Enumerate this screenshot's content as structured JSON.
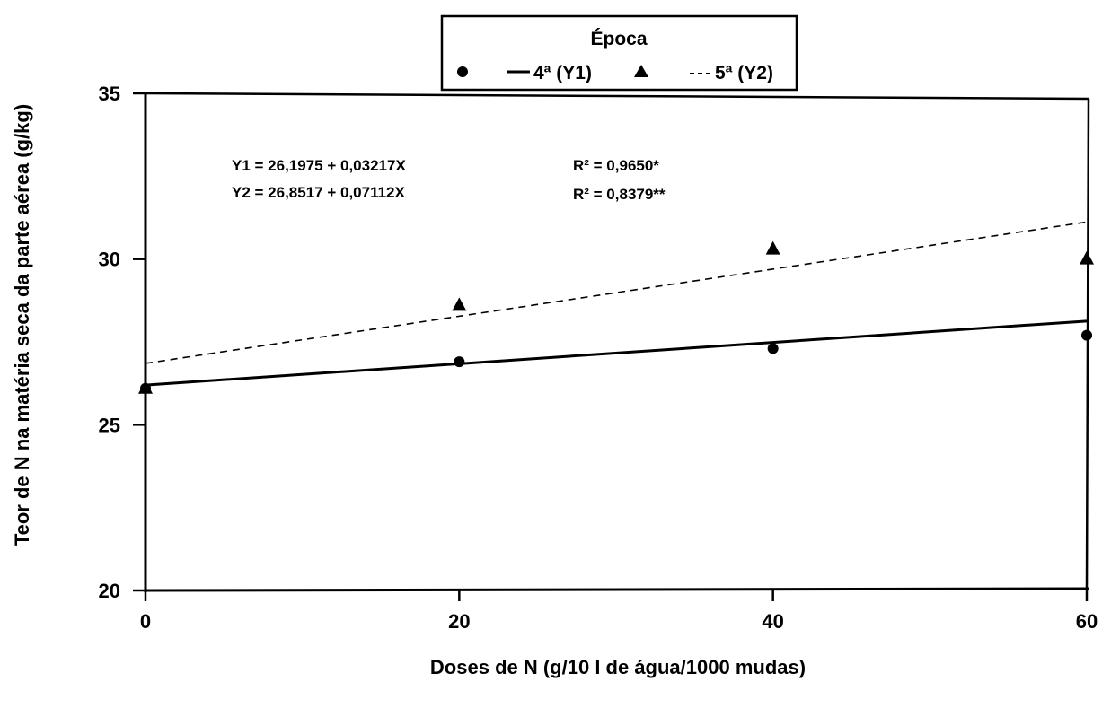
{
  "chart_data": {
    "type": "scatter",
    "xlabel": "Doses de N (g/10 l de água/1000 mudas)",
    "ylabel": "Teor de N na matéria seca da parte aérea (g/kg)",
    "xlim": [
      0,
      60
    ],
    "ylim": [
      20,
      35
    ],
    "x_ticks": [
      "0",
      "20",
      "40",
      "60"
    ],
    "y_ticks": [
      "20",
      "25",
      "30",
      "35"
    ],
    "grid": false,
    "legend": {
      "title": "Época",
      "position": "top-center",
      "entries": [
        "4ª (Y1)",
        "5ª (Y2)"
      ]
    },
    "series": [
      {
        "name": "4ª (Y1)",
        "marker": "circle",
        "line": "solid",
        "x": [
          0,
          20,
          40,
          60
        ],
        "y": [
          26.1,
          26.9,
          27.3,
          27.7
        ],
        "fit": {
          "intercept": 26.1975,
          "slope": 0.03217
        }
      },
      {
        "name": "5ª (Y2)",
        "marker": "triangle",
        "line": "dashed",
        "x": [
          0,
          20,
          40,
          60
        ],
        "y": [
          26.1,
          28.6,
          30.3,
          30.0
        ],
        "fit": {
          "intercept": 26.8517,
          "slope": 0.07112
        }
      }
    ],
    "annotations": {
      "eq1": "Y1 = 26,1975 + 0,03217X",
      "eq2": "Y2 = 26,8517 + 0,07112X",
      "r2_1": "R² = 0,9650*",
      "r2_2": "R² = 0,8379**"
    }
  }
}
